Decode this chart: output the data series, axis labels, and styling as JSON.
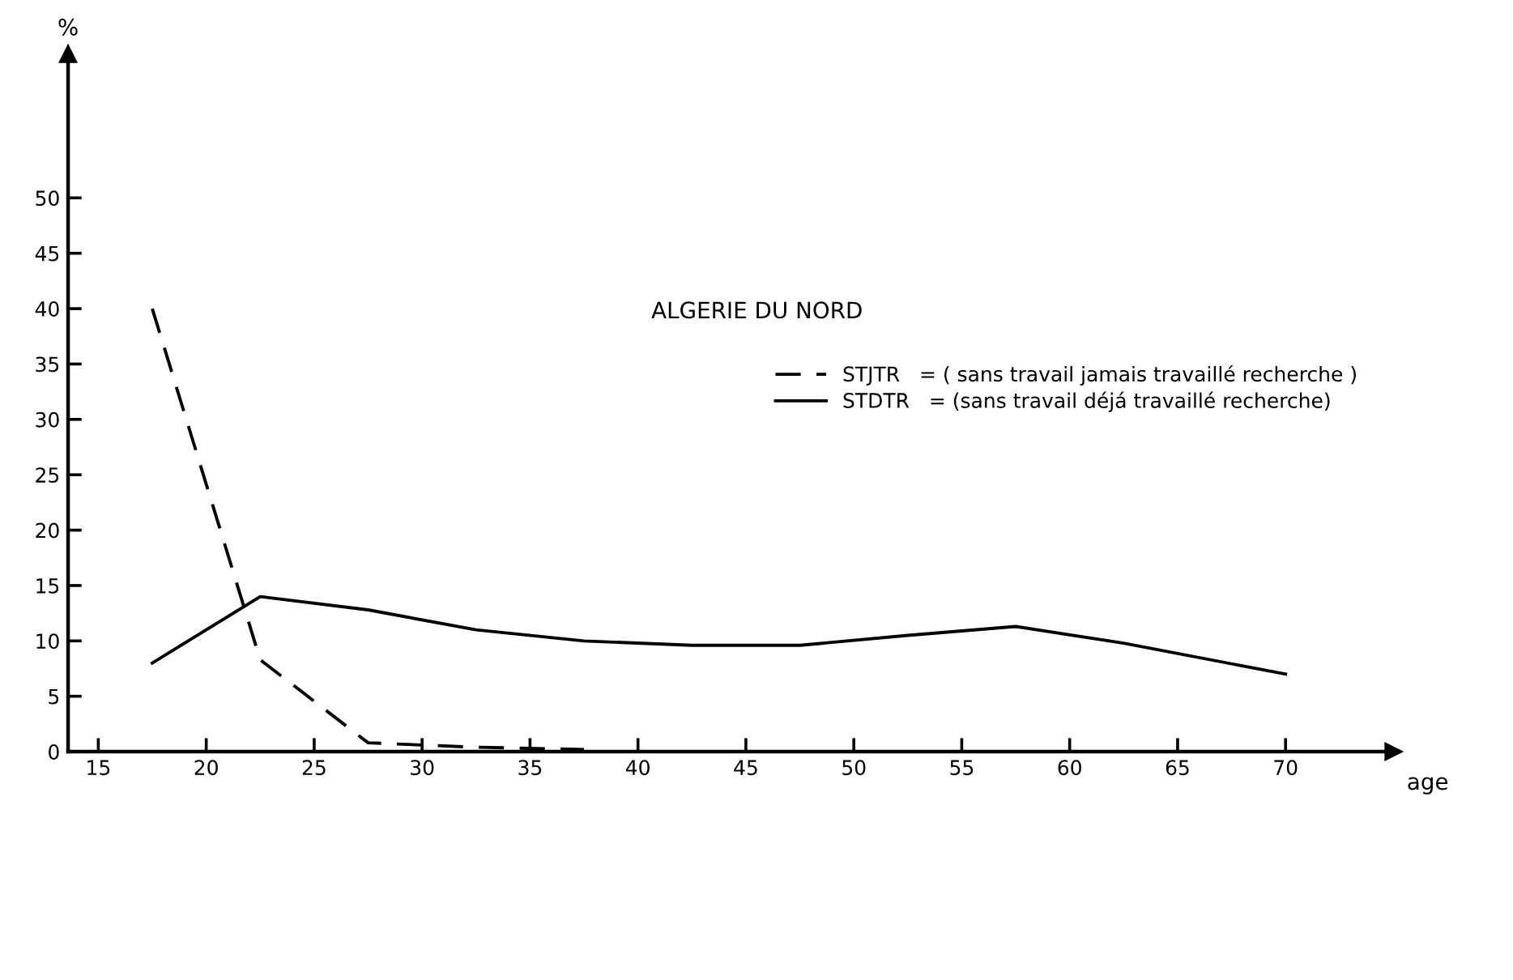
{
  "chart_data": {
    "type": "line",
    "title": "ALGERIE DU NORD",
    "xlabel": "age",
    "ylabel": "%",
    "x": [
      17.5,
      22.5,
      27.5,
      32.5,
      37.5,
      42.5,
      47.5,
      52.5,
      57.5,
      62.5,
      70
    ],
    "series": [
      {
        "name": "STJTR   = ( sans travail jamais travaillé recherche )",
        "color": "#000000",
        "line_style": "dashed",
        "x": [
          17.5,
          22.5,
          27.5,
          32.5,
          37.5
        ],
        "values": [
          40,
          8.3,
          0.8,
          0.4,
          0.2
        ]
      },
      {
        "name": "STDTR   = (sans travail déjá travaillé recherche)",
        "color": "#000000",
        "line_style": "solid",
        "values": [
          8,
          14,
          12.8,
          11,
          10,
          9.6,
          9.6,
          10.5,
          11.3,
          9.8,
          7
        ]
      }
    ],
    "xlim": [
      13.6,
      75
    ],
    "ylim": [
      0,
      63
    ],
    "xticks": [
      15,
      20,
      25,
      30,
      35,
      40,
      45,
      50,
      55,
      60,
      65,
      70
    ],
    "yticks": [
      0,
      5,
      10,
      15,
      20,
      25,
      30,
      35,
      40,
      45,
      50
    ],
    "grid": false,
    "legend": "top right",
    "marker": "none"
  }
}
